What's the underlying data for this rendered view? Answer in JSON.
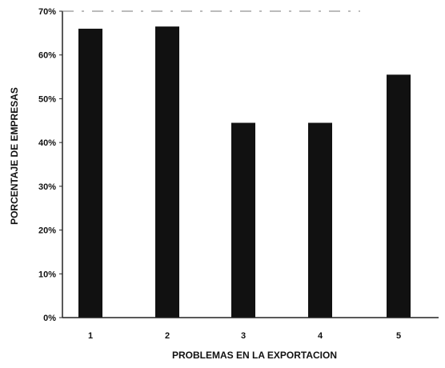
{
  "chart_data": {
    "type": "bar",
    "title": "",
    "xlabel": "PROBLEMAS EN LA EXPORTACION",
    "ylabel": "PORCENTAJE DE EMPRESAS",
    "categories": [
      "1",
      "2",
      "3",
      "4",
      "5"
    ],
    "values": [
      66,
      66.5,
      44.5,
      44.5,
      55.5
    ],
    "ylim": [
      0,
      70
    ],
    "yticks": [
      "0%",
      "10%",
      "20%",
      "30%",
      "40%",
      "50%",
      "60%",
      "70%"
    ],
    "yticks_values": [
      0,
      10,
      20,
      30,
      40,
      50,
      60,
      70
    ],
    "grid": false,
    "legend": "none",
    "bar_color": "#111111",
    "axis_color": "#222222"
  }
}
